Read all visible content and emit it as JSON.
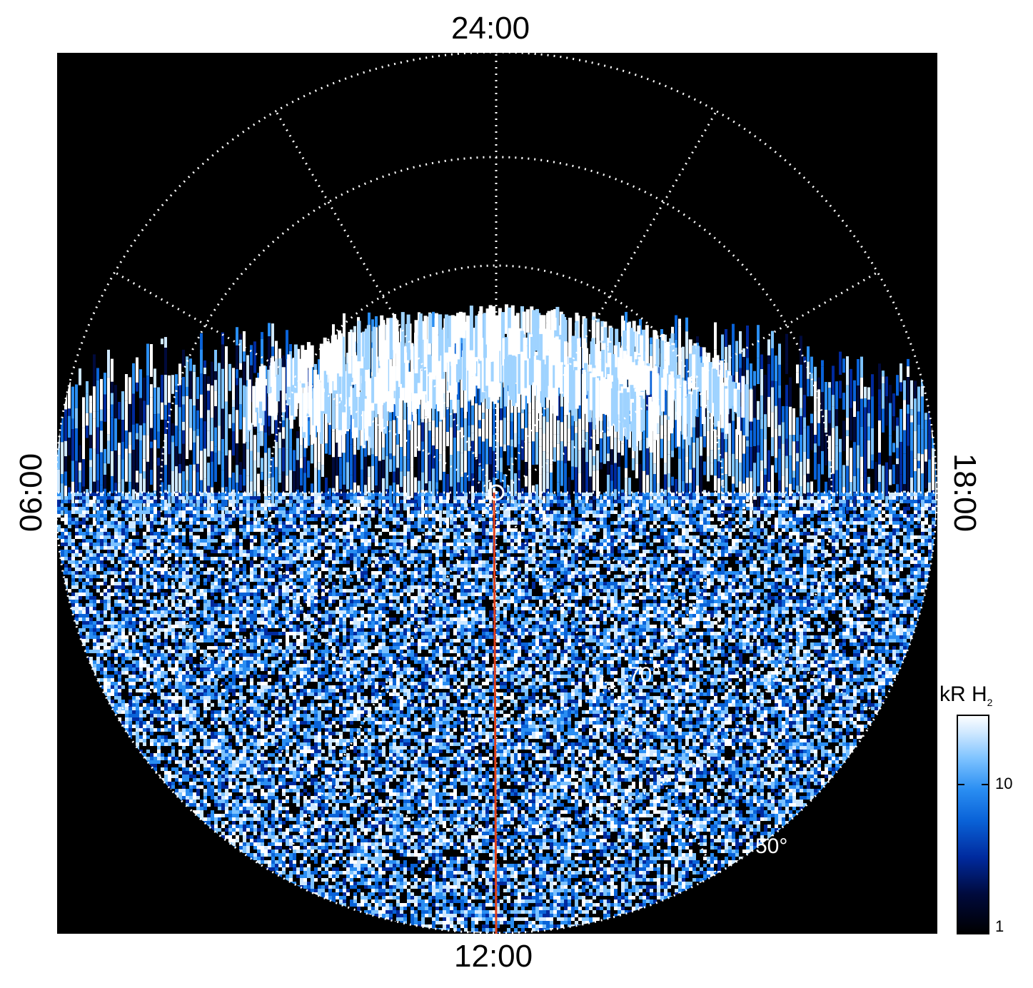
{
  "local_time_labels": {
    "top": "24:00",
    "bottom": "12:00",
    "left": "06:00",
    "right": "18:00"
  },
  "latitude_labels": {
    "inner": "70°",
    "outer": "50°"
  },
  "colorbar": {
    "title": "kR H",
    "title_subscript": "2",
    "scale": "log",
    "ticks": [
      "10",
      "1"
    ],
    "colors": [
      "#000000",
      "#000a3c",
      "#002a9e",
      "#0a63d8",
      "#2a8ef2",
      "#7cc2ff",
      "#cfe8ff",
      "#ffffff"
    ]
  },
  "colors": {
    "background": "#000000",
    "grid": "#ffffff",
    "meridian": "#e0401a",
    "emission_low": "#001a66",
    "emission_high": "#ffffff"
  }
}
